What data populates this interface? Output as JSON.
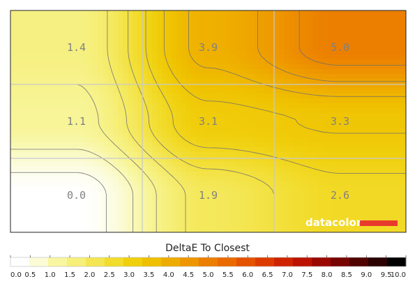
{
  "chart_data": {
    "type": "heatmap",
    "title": "DeltaE To Closest",
    "colorbar": {
      "min": 0.0,
      "max": 10.0,
      "ticks": [
        "0.0",
        "0.5",
        "1.0",
        "1.5",
        "2.0",
        "2.5",
        "3.0",
        "3.5",
        "4.0",
        "4.5",
        "5.0",
        "5.5",
        "6.0",
        "6.5",
        "7.0",
        "7.5",
        "8.0",
        "8.5",
        "9.0",
        "9.5",
        "10.0"
      ],
      "colors": [
        "#ffffff",
        "#fbfbd6",
        "#f8f6a0",
        "#f6ef7a",
        "#f4e653",
        "#f2dc2c",
        "#f0cf0d",
        "#efc000",
        "#efac00",
        "#ee9600",
        "#ec7e00",
        "#ea6a00",
        "#e55200",
        "#dc3c00",
        "#cf2400",
        "#bb1300",
        "#9a0800",
        "#760400",
        "#4f0200",
        "#2a0000",
        "#000000"
      ]
    },
    "grid": {
      "rows": 3,
      "cols": 3,
      "values": [
        [
          1.4,
          3.9,
          5.0
        ],
        [
          1.1,
          3.1,
          3.3
        ],
        [
          0.0,
          1.9,
          2.6
        ]
      ],
      "labels": [
        [
          "1.4",
          "3.9",
          "5.0"
        ],
        [
          "1.1",
          "3.1",
          "3.3"
        ],
        [
          "0.0",
          "1.9",
          "2.6"
        ]
      ]
    },
    "contours": "on",
    "gridlines": "on"
  },
  "brand": {
    "name": "datacolor",
    "accent": "#e83a2c"
  }
}
